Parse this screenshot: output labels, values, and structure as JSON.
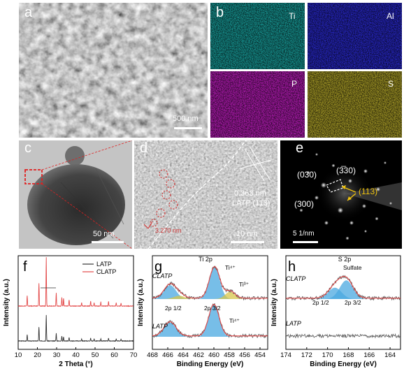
{
  "panels": {
    "a": {
      "label": "a",
      "scale": "500 nm"
    },
    "b": {
      "label": "b",
      "elements": [
        "Ti",
        "Al",
        "P",
        "S"
      ],
      "colors": [
        "#1aa7a4",
        "#2b2bd6",
        "#c21ec2",
        "#b5a82a"
      ]
    },
    "c": {
      "label": "c",
      "scale": "50 nm"
    },
    "d": {
      "label": "d",
      "spacing": "0.363 nm",
      "plane": "LATP (113)",
      "red_note": "3.270 nm",
      "scale": "10 nm"
    },
    "e": {
      "label": "e",
      "spots": [
        "(030)",
        "(3̅30)",
        "(300)"
      ],
      "arrow_label": "(113)",
      "scale": "5 1/nm"
    },
    "f": {
      "label": "f"
    },
    "g": {
      "label": "g"
    },
    "h": {
      "label": "h"
    }
  },
  "chart_data": [
    {
      "id": "f",
      "type": "line",
      "xlabel": "2 Theta (°)",
      "ylabel": "Intensity (a.u.)",
      "xlim": [
        10,
        70
      ],
      "xticks": [
        10,
        20,
        30,
        40,
        50,
        60,
        70
      ],
      "legend": {
        "position": "top-right"
      },
      "series": [
        {
          "name": "LATP",
          "color": "#333333",
          "peaks": [
            [
              14.7,
              18
            ],
            [
              20.8,
              40
            ],
            [
              24.6,
              75
            ],
            [
              29.8,
              22
            ],
            [
              32.7,
              14
            ],
            [
              33.6,
              12
            ],
            [
              36.5,
              10
            ],
            [
              43.0,
              6
            ],
            [
              47.7,
              8
            ],
            [
              49.5,
              6
            ],
            [
              53.0,
              6
            ],
            [
              57.0,
              8
            ],
            [
              61.0,
              6
            ],
            [
              63.5,
              5
            ]
          ]
        },
        {
          "name": "CLATP",
          "color": "#e34a4a",
          "peaks": [
            [
              14.7,
              30
            ],
            [
              20.8,
              65
            ],
            [
              24.6,
              140
            ],
            [
              29.8,
              38
            ],
            [
              32.7,
              25
            ],
            [
              33.6,
              22
            ],
            [
              36.5,
              18
            ],
            [
              43.0,
              10
            ],
            [
              47.7,
              14
            ],
            [
              49.5,
              10
            ],
            [
              53.0,
              12
            ],
            [
              57.0,
              14
            ],
            [
              61.0,
              10
            ],
            [
              63.5,
              8
            ]
          ]
        }
      ]
    },
    {
      "id": "g",
      "type": "line",
      "title": "Ti 2p",
      "xlabel": "Binding Energy (eV)",
      "ylabel": "Intensity (a.u.)",
      "xlim": [
        468,
        453
      ],
      "xticks": [
        468,
        466,
        464,
        462,
        460,
        458,
        456,
        454
      ],
      "labels": {
        "clatp": "CLATP",
        "latp": "LATP",
        "p12": "2p 1/2",
        "p32": "2p 3/2",
        "ti4_top": "Ti⁴⁺",
        "ti3": "Ti³⁺",
        "ti4_bottom": "Ti⁴⁺"
      },
      "series": [
        {
          "name": "CLATP",
          "components": [
            {
              "center": 465.7,
              "height": 0.34,
              "width": 1.1,
              "color": "#4aa8e0"
            },
            {
              "center": 459.9,
              "height": 0.78,
              "width": 0.95,
              "color": "#4aa8e0"
            },
            {
              "center": 457.9,
              "height": 0.18,
              "width": 0.9,
              "color": "#d8c54a"
            },
            {
              "center": 464.5,
              "height": 0.08,
              "width": 1.0,
              "color": "#d8c54a"
            }
          ]
        },
        {
          "name": "LATP",
          "components": [
            {
              "center": 465.7,
              "height": 0.35,
              "width": 1.1,
              "color": "#4aa8e0"
            },
            {
              "center": 460.0,
              "height": 0.78,
              "width": 0.95,
              "color": "#4aa8e0"
            }
          ]
        }
      ]
    },
    {
      "id": "h",
      "type": "line",
      "title": "S 2p",
      "xlabel": "Binding Energy (eV)",
      "ylabel": "Intensity (a.u.)",
      "xlim": [
        174,
        163
      ],
      "xticks": [
        174,
        172,
        170,
        168,
        166,
        164
      ],
      "labels": {
        "clatp": "CLATP",
        "latp": "LATP",
        "sulfate": "Sulfate",
        "p12": "2p 1/2",
        "p32": "2p 3/2"
      },
      "series": [
        {
          "name": "CLATP",
          "components": [
            {
              "center": 169.3,
              "height": 0.28,
              "width": 0.9,
              "color": "#4aa8e0"
            },
            {
              "center": 168.2,
              "height": 0.46,
              "width": 0.9,
              "color": "#4aa8e0"
            }
          ]
        },
        {
          "name": "LATP",
          "components": []
        }
      ]
    }
  ]
}
